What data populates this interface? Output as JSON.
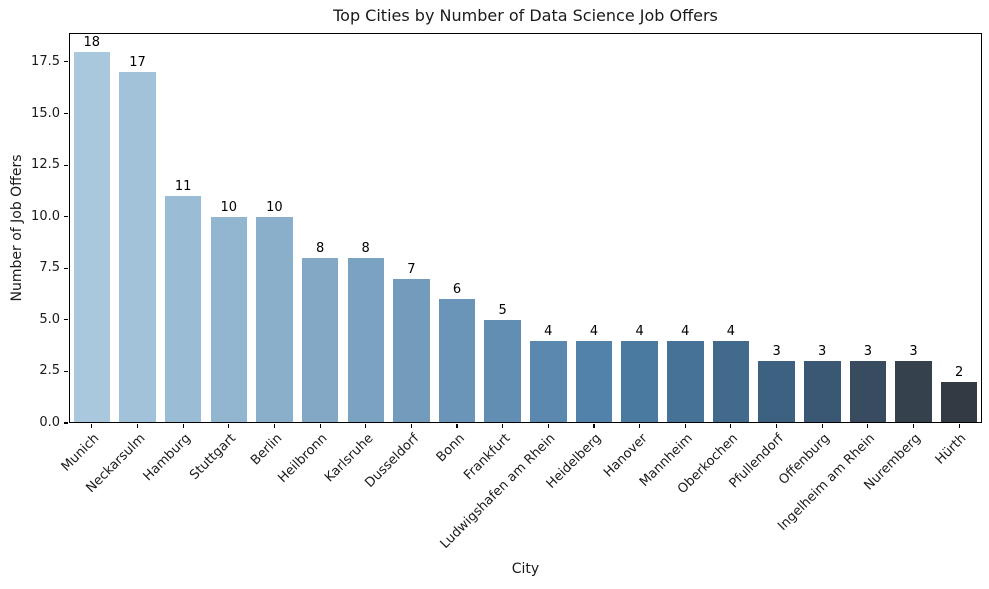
{
  "chart_data": {
    "type": "bar",
    "title": "Top Cities by Number of Data Science Job Offers",
    "xlabel": "City",
    "ylabel": "Number of Job Offers",
    "categories": [
      "Munich",
      "Neckarsulm",
      "Hamburg",
      "Stuttgart",
      "Berlin",
      "Heilbronn",
      "Karlsruhe",
      "Dusseldorf",
      "Bonn",
      "Frankfurt",
      "Ludwigshafen am Rhein",
      "Heidelberg",
      "Hanover",
      "Mannheim",
      "Oberkochen",
      "Pfullendorf",
      "Offenburg",
      "Ingelheim am Rhein",
      "Nuremberg",
      "Hürth"
    ],
    "values": [
      18,
      17,
      11,
      10,
      10,
      8,
      8,
      7,
      6,
      5,
      4,
      4,
      4,
      4,
      4,
      3,
      3,
      3,
      3,
      2
    ],
    "bar_labels": [
      "18",
      "17",
      "11",
      "10",
      "10",
      "8",
      "8",
      "7",
      "6",
      "5",
      "4",
      "4",
      "4",
      "4",
      "4",
      "3",
      "3",
      "3",
      "3",
      "2"
    ],
    "bar_colors": [
      "#a9c8de",
      "#a1c2d9",
      "#9abcd5",
      "#92b5d0",
      "#8aafcb",
      "#82a8c6",
      "#7aa2c1",
      "#729bbc",
      "#6a95b8",
      "#628eb3",
      "#5a88ae",
      "#5281a9",
      "#4a7aa0",
      "#457296",
      "#416a8c",
      "#3d6181",
      "#3a5773",
      "#394b5e",
      "#36414e",
      "#343a43"
    ],
    "yticks": [
      "0.0",
      "2.5",
      "5.0",
      "7.5",
      "10.0",
      "12.5",
      "15.0",
      "17.5"
    ],
    "ylim": [
      0,
      18.9
    ],
    "grid": false,
    "legend_position": "none",
    "x_tick_rotation_deg": 45,
    "background_color": "#ffffff",
    "axis_color": "#000000",
    "text_color": "#1a1a1a"
  }
}
